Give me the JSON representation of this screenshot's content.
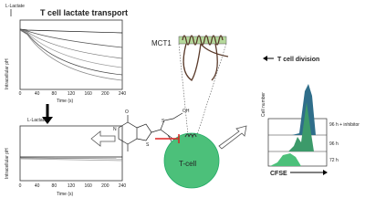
{
  "top_chart": {
    "stimulus": "L-Lactate",
    "title": "T cell lactate transport",
    "y_label": "Intracellular pH",
    "x_label": "Time (s)",
    "x_ticks": [
      "0",
      "40",
      "80",
      "120",
      "160",
      "200",
      "240"
    ]
  },
  "bottom_chart": {
    "stimulus": "L-Lactate",
    "y_label": "Intracellular pH",
    "x_label": "Time (s)",
    "x_ticks": [
      "0",
      "40",
      "80",
      "120",
      "160",
      "200",
      "240"
    ]
  },
  "molecule": {
    "atoms": [
      "O",
      "N",
      "S",
      "S",
      "OH"
    ]
  },
  "membrane": {
    "label": "MCT1"
  },
  "cell": {
    "label": "T-cell"
  },
  "histogram": {
    "title": "T cell division",
    "y_label": "Cell number",
    "x_label": "CFSE",
    "rows": [
      "96 h + inhibitor",
      "96 h",
      "72 h"
    ]
  }
}
